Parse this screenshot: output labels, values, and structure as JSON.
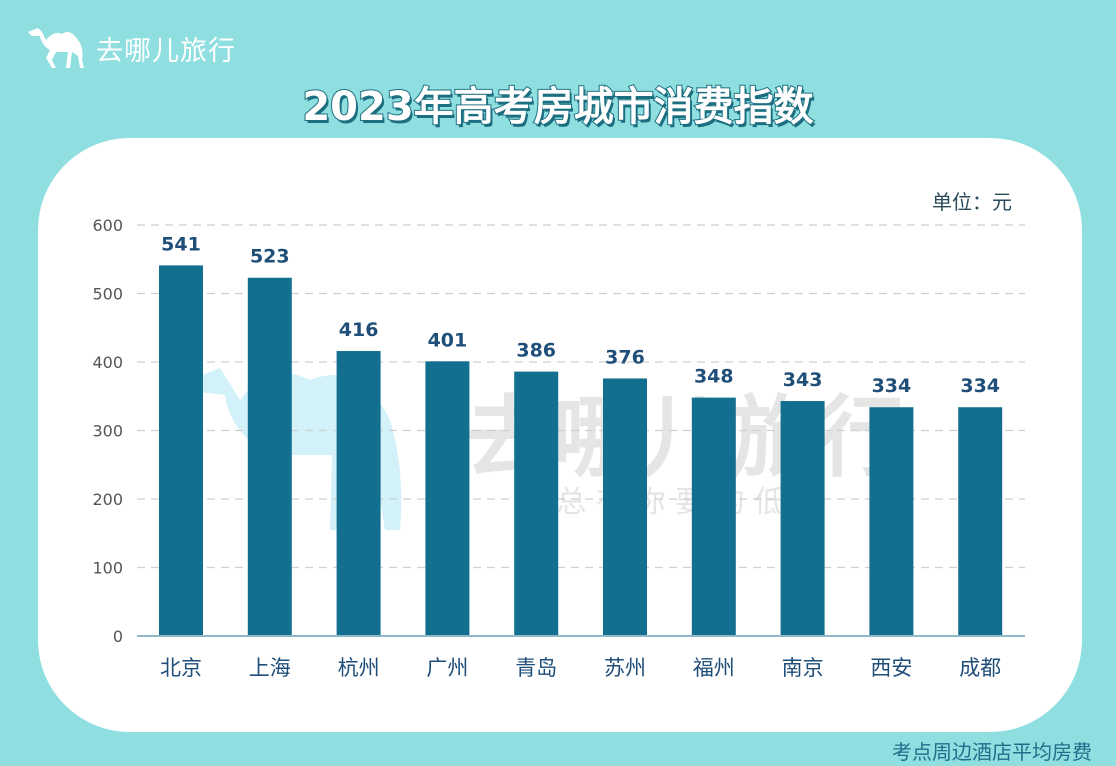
{
  "brand": {
    "name": "去哪儿旅行",
    "watermark_name": "去哪儿旅行",
    "watermark_slogan": "总 有 你 要 的 低 价",
    "logo_icon": "camel-icon"
  },
  "colors": {
    "background": "#8fdfe0",
    "bar": "#136f8f",
    "value_label": "#1f4e79",
    "title_outline": "#1c6f80"
  },
  "footer": "考点周边酒店平均房费",
  "chart_data": {
    "type": "bar",
    "title": "2023年高考房城市消费指数",
    "unit": "单位：元",
    "categories": [
      "北京",
      "上海",
      "杭州",
      "广州",
      "青岛",
      "苏州",
      "福州",
      "南京",
      "西安",
      "成都"
    ],
    "values": [
      541,
      523,
      416,
      401,
      386,
      376,
      348,
      343,
      334,
      334
    ],
    "ylim": [
      0,
      600
    ],
    "yticks": [
      0,
      100,
      200,
      300,
      400,
      500,
      600
    ],
    "grid": true,
    "legend": "none"
  }
}
